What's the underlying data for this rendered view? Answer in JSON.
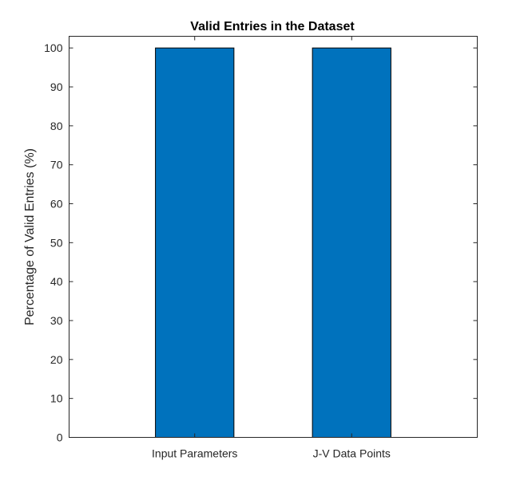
{
  "chart_data": {
    "type": "bar",
    "title": "Valid Entries in the Dataset",
    "xlabel": "",
    "ylabel": "Percentage of Valid Entries (%)",
    "categories": [
      "Input Parameters",
      "J-V Data Points"
    ],
    "values": [
      100,
      100
    ],
    "ylim": [
      0,
      103
    ],
    "yticks": [
      0,
      10,
      20,
      30,
      40,
      50,
      60,
      70,
      80,
      90,
      100
    ],
    "bar_color": "#0072BD",
    "grid": false,
    "legend": "none"
  }
}
